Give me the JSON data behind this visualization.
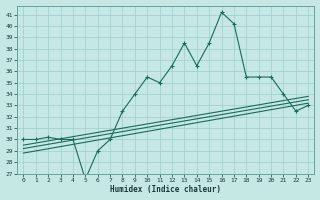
{
  "title": "",
  "xlabel": "Humidex (Indice chaleur)",
  "bg_color": "#c5e8e5",
  "grid_color": "#9ecece",
  "line_color": "#1a6b5a",
  "xlim": [
    -0.5,
    23.5
  ],
  "ylim": [
    27,
    41.8
  ],
  "yticks": [
    27,
    28,
    29,
    30,
    31,
    32,
    33,
    34,
    35,
    36,
    37,
    38,
    39,
    40,
    41
  ],
  "xticks": [
    0,
    1,
    2,
    3,
    4,
    5,
    6,
    7,
    8,
    9,
    10,
    11,
    12,
    13,
    14,
    15,
    16,
    17,
    18,
    19,
    20,
    21,
    22,
    23
  ],
  "main_line_x": [
    0,
    1,
    2,
    3,
    4,
    5,
    6,
    7,
    8,
    9,
    10,
    11,
    12,
    13,
    14,
    15,
    16,
    17,
    18,
    19,
    20,
    21,
    22,
    23
  ],
  "main_line_y": [
    30.0,
    30.0,
    30.2,
    30.0,
    30.0,
    26.5,
    29.0,
    30.0,
    32.5,
    34.0,
    35.5,
    35.0,
    36.5,
    38.5,
    36.5,
    38.5,
    41.2,
    40.2,
    35.5,
    35.5,
    35.5,
    34.0,
    32.5,
    33.0
  ],
  "trend1_x": [
    0,
    23
  ],
  "trend1_y": [
    29.5,
    33.8
  ],
  "trend2_x": [
    0,
    23
  ],
  "trend2_y": [
    29.2,
    33.5
  ],
  "trend3_x": [
    0,
    23
  ],
  "trend3_y": [
    28.8,
    33.2
  ]
}
